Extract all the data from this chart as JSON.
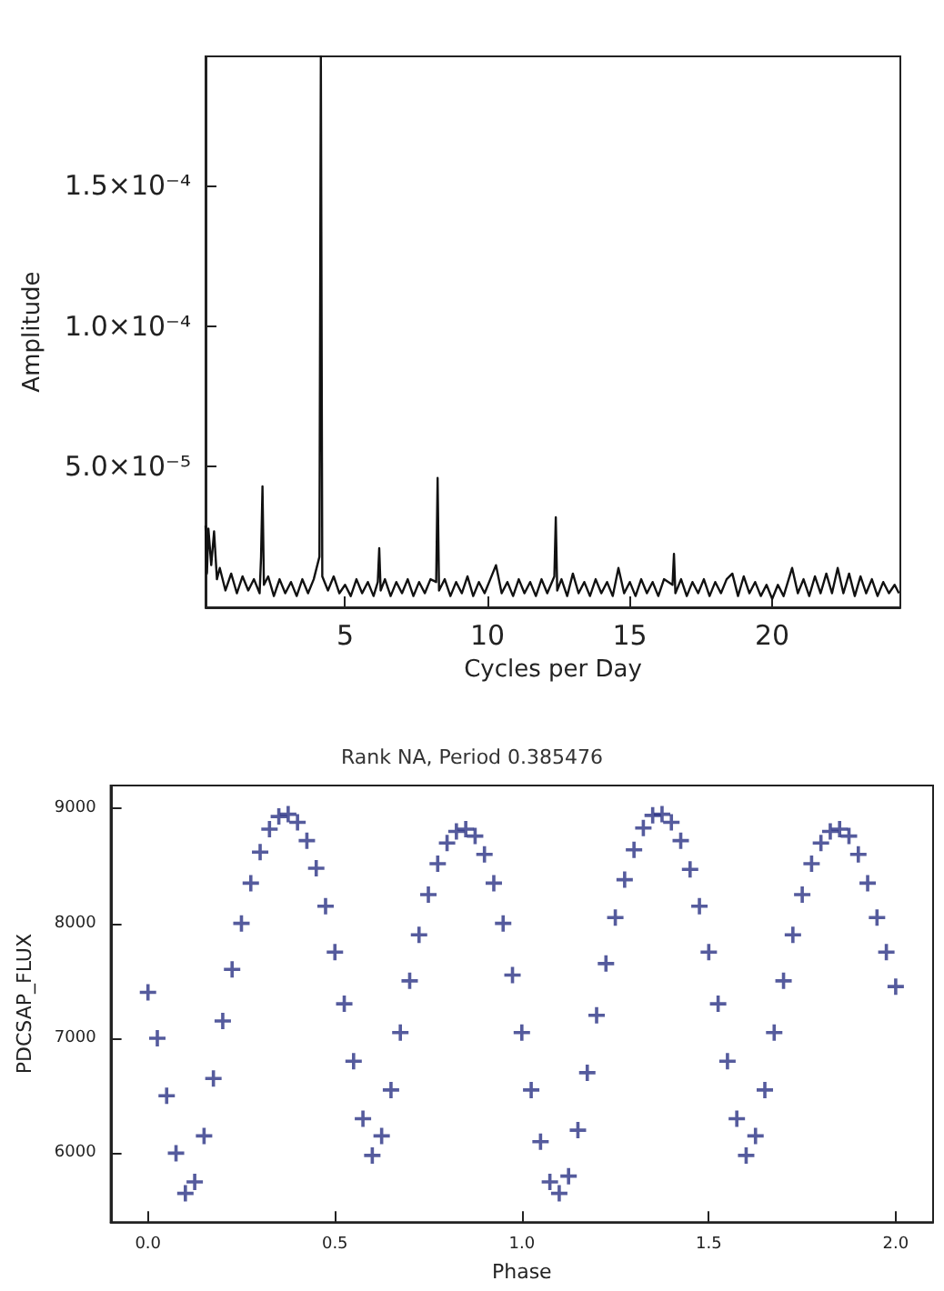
{
  "chart_data": [
    {
      "type": "line",
      "xlabel": "Cycles per Day",
      "ylabel": "Amplitude",
      "marker": "none",
      "xlim": [
        0.1,
        24.5
      ],
      "ylim": [
        0,
        0.000196
      ],
      "xticks": [
        5,
        10,
        15,
        20
      ],
      "yticks": [
        {
          "value": 5e-05,
          "label": "5.0×10⁻⁵"
        },
        {
          "value": 0.0001,
          "label": "1.0×10⁻⁴"
        },
        {
          "value": 0.00015,
          "label": "1.5×10⁻⁴"
        }
      ],
      "series": [
        {
          "color": "#111111",
          "x": [
            0.1,
            0.15,
            0.2,
            0.3,
            0.4,
            0.5,
            0.6,
            0.8,
            1.0,
            1.2,
            1.4,
            1.6,
            1.8,
            2.0,
            2.05,
            2.1,
            2.15,
            2.3,
            2.5,
            2.7,
            2.9,
            3.1,
            3.3,
            3.5,
            3.7,
            3.9,
            4.1,
            4.15,
            4.2,
            4.4,
            4.6,
            4.8,
            5.0,
            5.2,
            5.4,
            5.6,
            5.8,
            6.0,
            6.15,
            6.2,
            6.25,
            6.4,
            6.6,
            6.8,
            7.0,
            7.2,
            7.4,
            7.6,
            7.8,
            8.0,
            8.2,
            8.25,
            8.3,
            8.5,
            8.7,
            8.9,
            9.1,
            9.3,
            9.5,
            9.7,
            9.9,
            10.1,
            10.3,
            10.5,
            10.7,
            10.9,
            11.1,
            11.3,
            11.5,
            11.7,
            11.9,
            12.1,
            12.35,
            12.4,
            12.45,
            12.6,
            12.8,
            13.0,
            13.2,
            13.4,
            13.6,
            13.8,
            14.0,
            14.2,
            14.4,
            14.6,
            14.8,
            15.0,
            15.2,
            15.4,
            15.6,
            15.8,
            16.0,
            16.2,
            16.5,
            16.55,
            16.6,
            16.8,
            17.0,
            17.2,
            17.4,
            17.6,
            17.8,
            18.0,
            18.2,
            18.4,
            18.6,
            18.8,
            19.0,
            19.2,
            19.4,
            19.6,
            19.8,
            20.0,
            20.2,
            20.4,
            20.7,
            20.9,
            21.1,
            21.3,
            21.5,
            21.7,
            21.9,
            22.1,
            22.3,
            22.5,
            22.7,
            22.9,
            23.1,
            23.3,
            23.5,
            23.7,
            23.9,
            24.1,
            24.3,
            24.45
          ],
          "values": [
            2.9e-05,
            1.2e-05,
            2.8e-05,
            1.5e-05,
            2.7e-05,
            1e-05,
            1.4e-05,
            6e-06,
            1.2e-05,
            5e-06,
            1.1e-05,
            6e-06,
            1e-05,
            5e-06,
            1.8e-05,
            4.3e-05,
            8e-06,
            1.1e-05,
            4e-06,
            1e-05,
            5e-06,
            9e-06,
            4e-06,
            1e-05,
            5e-06,
            1e-05,
            1.8e-05,
            0.000196,
            1.1e-05,
            6e-06,
            1.1e-05,
            5e-06,
            8e-06,
            4e-06,
            1e-05,
            5e-06,
            9e-06,
            4e-06,
            9e-06,
            2.1e-05,
            6e-06,
            1e-05,
            4e-06,
            9e-06,
            5e-06,
            1e-05,
            4e-06,
            9e-06,
            5e-06,
            1e-05,
            9e-06,
            4.6e-05,
            6e-06,
            1e-05,
            4e-06,
            9e-06,
            5e-06,
            1.1e-05,
            4e-06,
            9e-06,
            5e-06,
            1e-05,
            1.5e-05,
            5e-06,
            9e-06,
            4e-06,
            1e-05,
            5e-06,
            9e-06,
            4e-06,
            1e-05,
            5e-06,
            1.1e-05,
            3.2e-05,
            6e-06,
            1e-05,
            4e-06,
            1.2e-05,
            5e-06,
            9e-06,
            4e-06,
            1e-05,
            5e-06,
            9e-06,
            4e-06,
            1.4e-05,
            5e-06,
            9e-06,
            4e-06,
            1e-05,
            5e-06,
            9e-06,
            4e-06,
            1e-05,
            8e-06,
            1.9e-05,
            5e-06,
            1e-05,
            4e-06,
            9e-06,
            5e-06,
            1e-05,
            4e-06,
            9e-06,
            5e-06,
            1e-05,
            1.2e-05,
            4e-06,
            1.1e-05,
            5e-06,
            9e-06,
            4e-06,
            8e-06,
            3e-06,
            8e-06,
            4e-06,
            1.4e-05,
            5e-06,
            1e-05,
            4e-06,
            1.1e-05,
            5e-06,
            1.2e-05,
            5e-06,
            1.4e-05,
            5e-06,
            1.2e-05,
            4e-06,
            1.1e-05,
            5e-06,
            1e-05,
            4e-06,
            9e-06,
            5e-06,
            8e-06,
            5e-06
          ]
        }
      ]
    },
    {
      "type": "scatter",
      "title": "Rank NA, Period 0.385476",
      "xlabel": "Phase",
      "ylabel": "PDCSAP_FLUX",
      "marker": "cross",
      "xlim": [
        -0.1,
        2.1
      ],
      "ylim": [
        5400,
        9200
      ],
      "xticks": [
        {
          "value": 0,
          "label": "0.0"
        },
        0.5,
        {
          "value": 1,
          "label": "1.0"
        },
        1.5,
        {
          "value": 2,
          "label": "2.0"
        }
      ],
      "yticks": [
        6000,
        7000,
        8000,
        9000
      ],
      "series": [
        {
          "color": "#2b3284",
          "x": [
            0,
            0.025,
            0.05,
            0.075,
            0.1,
            0.125,
            0.15,
            0.175,
            0.2,
            0.225,
            0.25,
            0.275,
            0.3,
            0.325,
            0.35,
            0.375,
            0.4,
            0.425,
            0.45,
            0.475,
            0.5,
            0.525,
            0.55,
            0.575,
            0.6,
            0.625,
            0.65,
            0.675,
            0.7,
            0.725,
            0.75,
            0.775,
            0.8,
            0.825,
            0.85,
            0.875,
            0.9,
            0.925,
            0.95,
            0.975,
            1,
            1.025,
            1.05,
            1.075,
            1.1,
            1.125,
            1.15,
            1.175,
            1.2,
            1.225,
            1.25,
            1.275,
            1.3,
            1.325,
            1.35,
            1.375,
            1.4,
            1.425,
            1.45,
            1.475,
            1.5,
            1.525,
            1.55,
            1.575,
            1.6,
            1.625,
            1.65,
            1.675,
            1.7,
            1.725,
            1.75,
            1.775,
            1.8,
            1.825,
            1.85,
            1.875,
            1.9,
            1.925,
            1.95,
            1.975,
            2
          ],
          "values": [
            7400,
            7000,
            6500,
            6000,
            5650,
            5750,
            6150,
            6650,
            7150,
            7600,
            8000,
            8350,
            8620,
            8820,
            8930,
            8950,
            8880,
            8720,
            8480,
            8150,
            7750,
            7300,
            6800,
            6300,
            5980,
            6150,
            6550,
            7050,
            7500,
            7900,
            8250,
            8520,
            8700,
            8800,
            8820,
            8760,
            8600,
            8350,
            8000,
            7550,
            7050,
            6550,
            6100,
            5750,
            5650,
            5800,
            6200,
            6700,
            7200,
            7650,
            8050,
            8380,
            8640,
            8830,
            8940,
            8950,
            8880,
            8720,
            8470,
            8150,
            7750,
            7300,
            6800,
            6300,
            5980,
            6150,
            6550,
            7050,
            7500,
            7900,
            8250,
            8520,
            8700,
            8800,
            8820,
            8760,
            8600,
            8350,
            8050,
            7750,
            7450
          ]
        }
      ]
    }
  ]
}
